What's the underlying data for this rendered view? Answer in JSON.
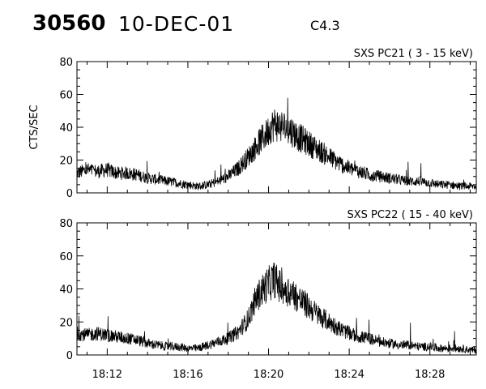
{
  "header": {
    "event_id": "30560",
    "date": "10-DEC-01",
    "flare_class": "C4.3"
  },
  "chart_data": [
    {
      "type": "line",
      "title": "SXS PC21  (  3 - 15 keV)",
      "ylabel": "CTS/SEC",
      "xlabel": "",
      "ylim": [
        0,
        80
      ],
      "xlim_minutes": [
        10.5,
        30.3
      ],
      "yticks": [
        "0",
        "20",
        "40",
        "60",
        "80"
      ],
      "xtick_labels": [],
      "grid": false,
      "series": [
        {
          "x": [
            10.5,
            11.0,
            11.5,
            12.0,
            12.5,
            13.0,
            13.5,
            14.0,
            14.5,
            15.0,
            15.5,
            16.0,
            16.5,
            17.0,
            17.5,
            18.0,
            18.5,
            19.0,
            19.3,
            19.6,
            19.9,
            20.1,
            20.3,
            20.5,
            20.8,
            21.1,
            21.5,
            22.0,
            22.5,
            23.0,
            23.5,
            24.0,
            24.5,
            25.0,
            25.5,
            26.0,
            26.5,
            27.0,
            27.5,
            28.0,
            28.5,
            29.0,
            29.5,
            30.0,
            30.3
          ],
          "y": [
            12,
            14,
            13,
            14,
            12,
            12,
            11,
            9,
            8,
            7,
            6,
            5,
            4,
            5,
            7,
            10,
            15,
            22,
            27,
            32,
            36,
            40,
            42,
            41,
            40,
            38,
            34,
            30,
            26,
            22,
            18,
            15,
            13,
            11,
            10,
            9,
            8,
            7,
            7,
            6,
            5,
            5,
            4,
            4,
            4
          ]
        }
      ]
    },
    {
      "type": "line",
      "title": "SXS PC22  ( 15 - 40 keV)",
      "ylabel": "",
      "xlabel": "",
      "ylim": [
        0,
        80
      ],
      "xlim_minutes": [
        10.5,
        30.3
      ],
      "yticks": [
        "0",
        "20",
        "40",
        "60",
        "80"
      ],
      "xtick_labels": [
        "18:12",
        "18:16",
        "18:20",
        "18:24",
        "18:28"
      ],
      "grid": false,
      "series": [
        {
          "x": [
            10.5,
            11.0,
            11.5,
            12.0,
            12.5,
            13.0,
            13.5,
            14.0,
            14.5,
            15.0,
            15.5,
            16.0,
            16.5,
            17.0,
            17.5,
            18.0,
            18.5,
            19.0,
            19.3,
            19.6,
            19.9,
            20.1,
            20.3,
            20.5,
            20.8,
            21.1,
            21.5,
            22.0,
            22.5,
            23.0,
            23.5,
            24.0,
            24.5,
            25.0,
            25.5,
            26.0,
            26.5,
            27.0,
            27.5,
            28.0,
            28.5,
            29.0,
            29.5,
            30.0,
            30.3
          ],
          "y": [
            13,
            12,
            13,
            12,
            11,
            10,
            9,
            7,
            6,
            5,
            5,
            4,
            4,
            6,
            8,
            10,
            14,
            22,
            32,
            38,
            42,
            44,
            46,
            42,
            40,
            38,
            34,
            29,
            24,
            20,
            16,
            13,
            11,
            10,
            8,
            7,
            6,
            6,
            5,
            5,
            4,
            4,
            4,
            3,
            3
          ]
        }
      ]
    }
  ]
}
